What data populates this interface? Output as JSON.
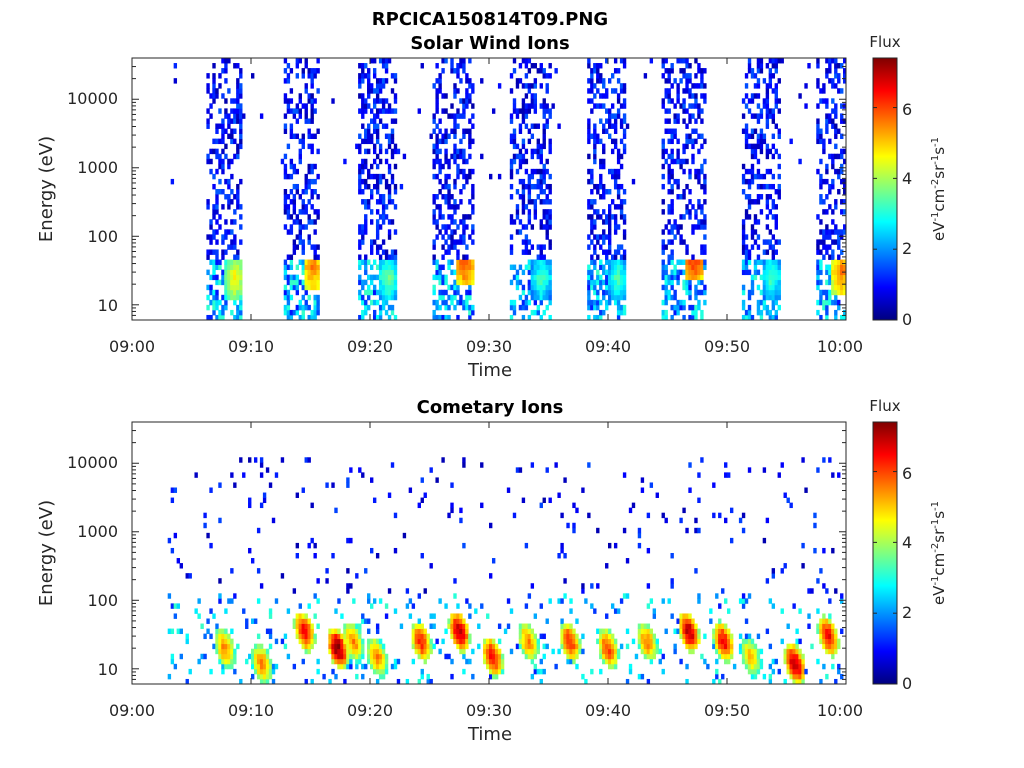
{
  "figure": {
    "title": "RPCICA150814T09.PNG"
  },
  "chart_data": [
    {
      "type": "heatmap",
      "title": "Solar Wind Ions",
      "xlabel": "Time",
      "ylabel": "Energy (eV)",
      "x_range": [
        "09:00",
        "10:00"
      ],
      "x_ticks": [
        "09:00",
        "09:10",
        "09:20",
        "09:30",
        "09:40",
        "09:50",
        "10:00"
      ],
      "y_scale": "log",
      "y_range": [
        6,
        40000
      ],
      "y_ticks": [
        "10",
        "100",
        "1000",
        "10000"
      ],
      "colorbar": {
        "title": "Flux",
        "unit": "eV-1cm-2sr-1s-1",
        "range": [
          0,
          7.4
        ],
        "ticks": [
          "0",
          "2",
          "4",
          "6"
        ],
        "colormap": "jet"
      },
      "sweeps": [
        {
          "start_min": 6.3,
          "end_min": 9.2,
          "hot_energy_eV": 25,
          "peak_flux": 4.5
        },
        {
          "start_min": 12.8,
          "end_min": 15.8,
          "hot_energy_eV": 35,
          "peak_flux": 5.5
        },
        {
          "start_min": 19.0,
          "end_min": 22.3,
          "hot_energy_eV": 25,
          "peak_flux": 3.5
        },
        {
          "start_min": 25.3,
          "end_min": 28.8,
          "hot_energy_eV": 40,
          "peak_flux": 5.8
        },
        {
          "start_min": 31.8,
          "end_min": 35.2,
          "hot_energy_eV": 25,
          "peak_flux": 3.2
        },
        {
          "start_min": 38.3,
          "end_min": 41.5,
          "hot_energy_eV": 25,
          "peak_flux": 3.2
        },
        {
          "start_min": 44.5,
          "end_min": 48.2,
          "hot_energy_eV": 50,
          "peak_flux": 6.2
        },
        {
          "start_min": 51.2,
          "end_min": 54.5,
          "hot_energy_eV": 25,
          "peak_flux": 3.2
        },
        {
          "start_min": 57.5,
          "end_min": 60.0,
          "hot_energy_eV": 30,
          "peak_flux": 5.5
        }
      ]
    },
    {
      "type": "heatmap",
      "title": "Cometary Ions",
      "xlabel": "Time",
      "ylabel": "Energy (eV)",
      "x_range": [
        "09:00",
        "10:00"
      ],
      "x_ticks": [
        "09:00",
        "09:10",
        "09:20",
        "09:30",
        "09:40",
        "09:50",
        "10:00"
      ],
      "y_scale": "log",
      "y_range": [
        6,
        40000
      ],
      "y_ticks": [
        "10",
        "100",
        "1000",
        "10000"
      ],
      "colorbar": {
        "title": "Flux",
        "unit": "eV-1cm-2sr-1s-1",
        "range": [
          0,
          7.4
        ],
        "ticks": [
          "0",
          "2",
          "4",
          "6"
        ],
        "colormap": "jet"
      },
      "hot_spots": [
        {
          "time_min": 7.8,
          "energy_eV": 20,
          "flux": 5.5
        },
        {
          "time_min": 10.9,
          "energy_eV": 12,
          "flux": 5.5
        },
        {
          "time_min": 14.5,
          "energy_eV": 35,
          "flux": 6.5
        },
        {
          "time_min": 17.3,
          "energy_eV": 20,
          "flux": 7.2
        },
        {
          "time_min": 18.6,
          "energy_eV": 25,
          "flux": 5.5
        },
        {
          "time_min": 20.6,
          "energy_eV": 15,
          "flux": 5.5
        },
        {
          "time_min": 24.3,
          "energy_eV": 25,
          "flux": 6.2
        },
        {
          "time_min": 27.5,
          "energy_eV": 35,
          "flux": 7.0
        },
        {
          "time_min": 30.3,
          "energy_eV": 15,
          "flux": 6.5
        },
        {
          "time_min": 33.3,
          "energy_eV": 25,
          "flux": 5.5
        },
        {
          "time_min": 36.8,
          "energy_eV": 25,
          "flux": 6.2
        },
        {
          "time_min": 40.0,
          "energy_eV": 20,
          "flux": 6.0
        },
        {
          "time_min": 43.3,
          "energy_eV": 25,
          "flux": 5.5
        },
        {
          "time_min": 46.8,
          "energy_eV": 35,
          "flux": 7.0
        },
        {
          "time_min": 49.7,
          "energy_eV": 25,
          "flux": 6.5
        },
        {
          "time_min": 52.0,
          "energy_eV": 15,
          "flux": 5.0
        },
        {
          "time_min": 55.7,
          "energy_eV": 12,
          "flux": 7.0
        },
        {
          "time_min": 58.5,
          "energy_eV": 30,
          "flux": 6.5
        }
      ]
    }
  ]
}
